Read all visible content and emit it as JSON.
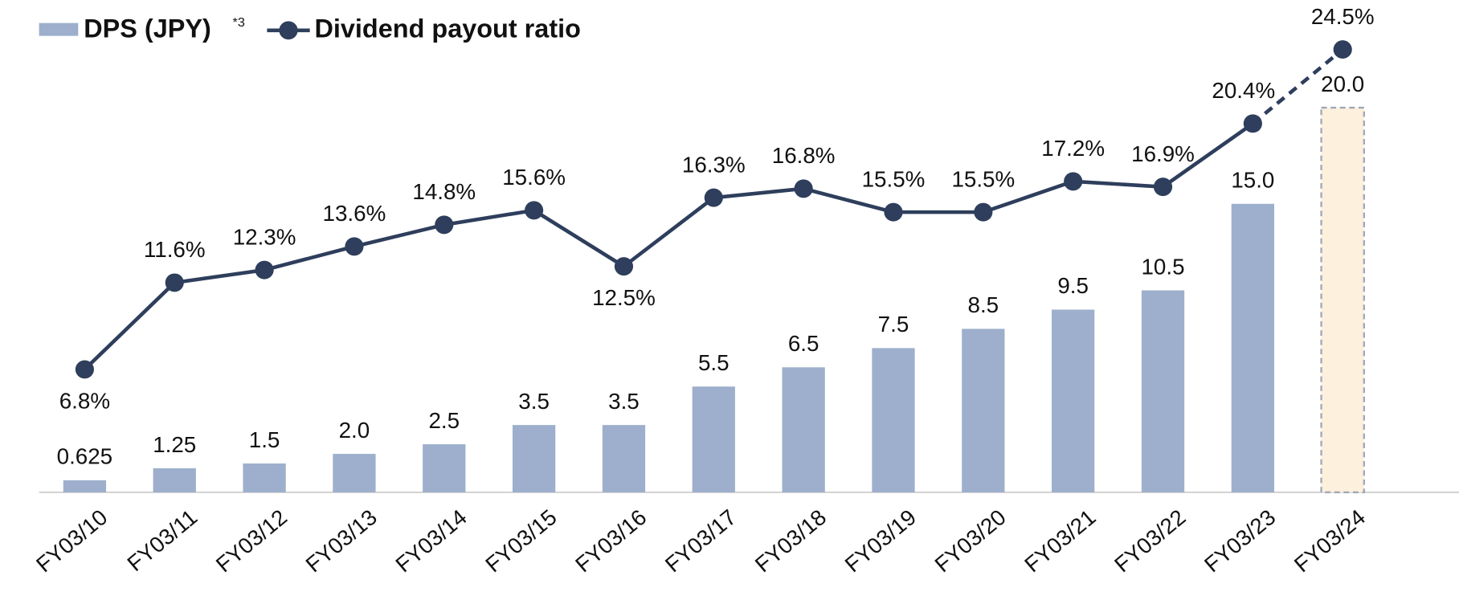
{
  "chart_data": {
    "type": "bar-line",
    "categories": [
      "FY03/10",
      "FY03/11",
      "FY03/12",
      "FY03/13",
      "FY03/14",
      "FY03/15",
      "FY03/16",
      "FY03/17",
      "FY03/18",
      "FY03/19",
      "FY03/20",
      "FY03/21",
      "FY03/22",
      "FY03/23",
      "FY03/24"
    ],
    "series": [
      {
        "name": "DPS (JPY)",
        "note": "*3",
        "type": "bar",
        "color": "#9dafcc",
        "values": [
          0.625,
          1.25,
          1.5,
          2,
          2.5,
          3.5,
          3.5,
          5.5,
          6.5,
          7.5,
          8.5,
          9.5,
          10.5,
          15,
          20
        ],
        "value_labels": [
          "0.625",
          "1.25",
          "1.5",
          "2.0",
          "2.5",
          "3.5",
          "3.5",
          "5.5",
          "6.5",
          "7.5",
          "8.5",
          "9.5",
          "10.5",
          "15.0",
          "20.0"
        ],
        "forecast_last": true,
        "forecast_color": "#fdf0dc"
      },
      {
        "name": "Dividend payout ratio",
        "type": "line",
        "axis": "y2",
        "color": "#2e3e5c",
        "values": [
          6.8,
          11.6,
          12.3,
          13.6,
          14.8,
          15.6,
          12.5,
          16.3,
          16.8,
          15.5,
          15.5,
          17.2,
          16.9,
          20.4,
          24.5
        ],
        "value_labels": [
          "6.8%",
          "11.6%",
          "12.3%",
          "13.6%",
          "14.8%",
          "15.6%",
          "12.5%",
          "16.3%",
          "16.8%",
          "15.5%",
          "15.5%",
          "17.2%",
          "16.9%",
          "20.4%",
          "24.5%"
        ],
        "forecast_last": true
      }
    ],
    "ylim": [
      0,
      25
    ],
    "y2lim": [
      0,
      26.6
    ]
  }
}
